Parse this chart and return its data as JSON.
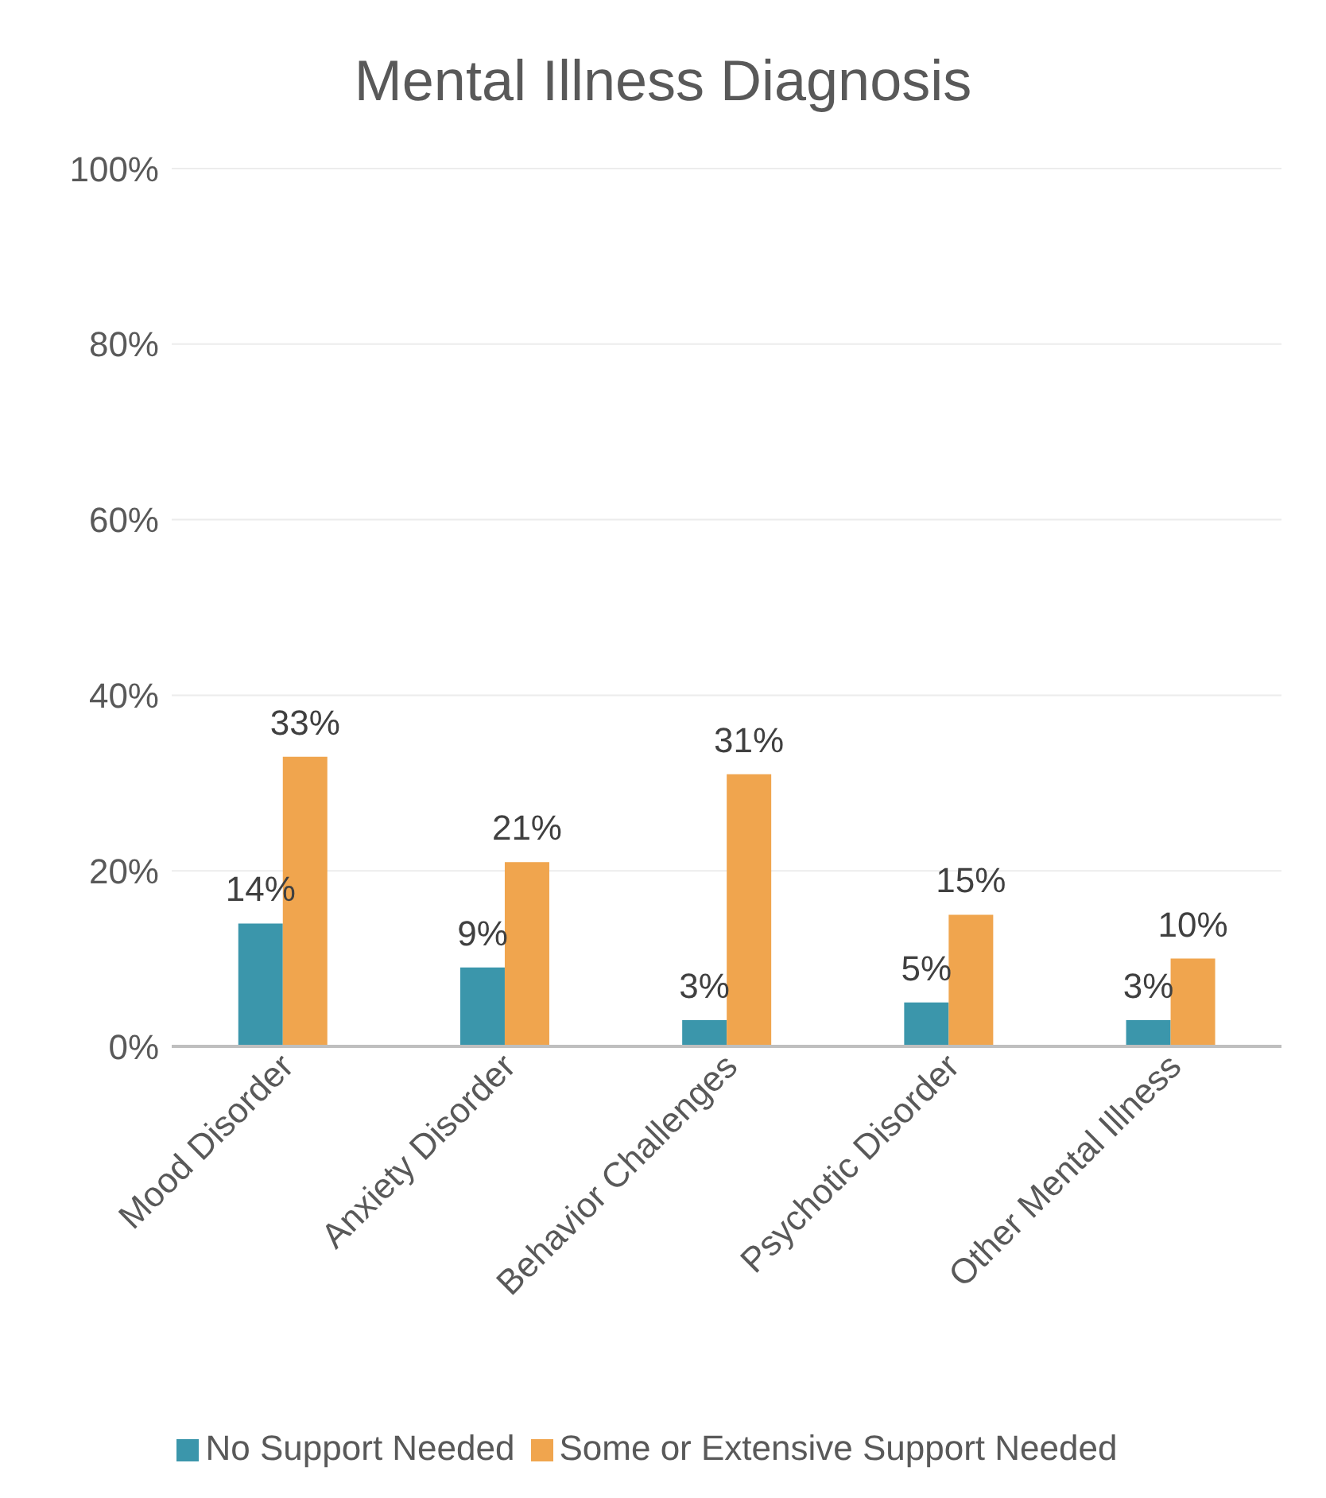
{
  "chart_data": {
    "type": "bar",
    "title": "Mental Illness Diagnosis",
    "categories": [
      "Mood Disorder",
      "Anxiety Disorder",
      "Behavior Challenges",
      "Psychotic Disorder",
      "Other Mental Illness"
    ],
    "series": [
      {
        "name": "No Support Needed",
        "color": "#3b96ab",
        "values": [
          14,
          9,
          3,
          5,
          3
        ],
        "value_labels": [
          "14%",
          "9%",
          "3%",
          "5%",
          "3%"
        ]
      },
      {
        "name": "Some or Extensive Support Needed",
        "color": "#f0a54e",
        "values": [
          33,
          21,
          31,
          15,
          10
        ],
        "value_labels": [
          "33%",
          "21%",
          "31%",
          "15%",
          "10%"
        ]
      }
    ],
    "ylim": [
      0,
      100
    ],
    "yticks": [
      {
        "value": 0,
        "label": "0%"
      },
      {
        "value": 20,
        "label": "20%"
      },
      {
        "value": 40,
        "label": "40%"
      },
      {
        "value": 60,
        "label": "60%"
      },
      {
        "value": 80,
        "label": "80%"
      },
      {
        "value": 100,
        "label": "100%"
      }
    ],
    "grid": "y",
    "legend": "bottom"
  }
}
